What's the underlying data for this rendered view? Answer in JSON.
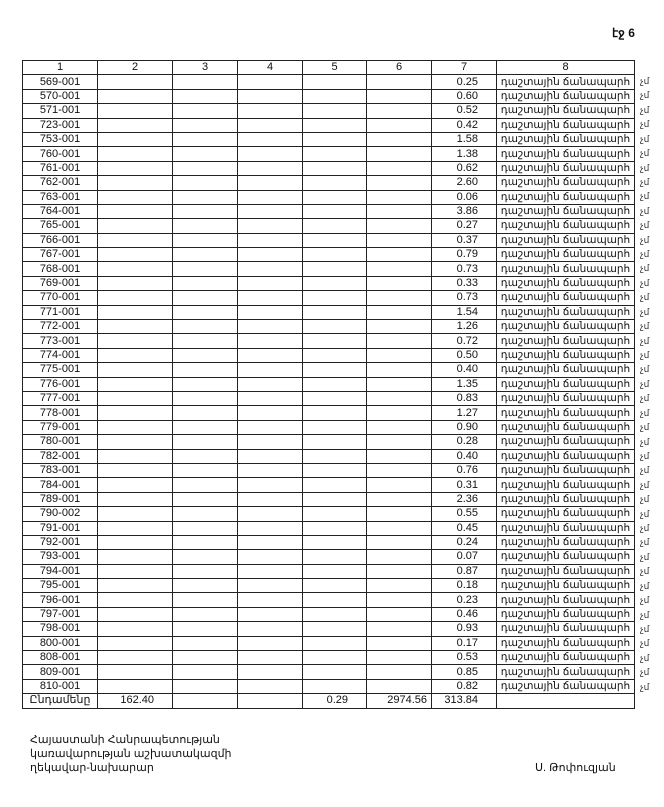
{
  "page_label": "էջ 6",
  "table": {
    "headers": [
      "1",
      "2",
      "3",
      "4",
      "5",
      "6",
      "7",
      "8"
    ],
    "rows": [
      [
        "569-001",
        "0.25"
      ],
      [
        "570-001",
        "0.60"
      ],
      [
        "571-001",
        "0.52"
      ],
      [
        "723-001",
        "0.42"
      ],
      [
        "753-001",
        "1.58"
      ],
      [
        "760-001",
        "1.38"
      ],
      [
        "761-001",
        "0.62"
      ],
      [
        "762-001",
        "2.60"
      ],
      [
        "763-001",
        "0.06"
      ],
      [
        "764-001",
        "3.86"
      ],
      [
        "765-001",
        "0.27"
      ],
      [
        "766-001",
        "0.37"
      ],
      [
        "767-001",
        "0.79"
      ],
      [
        "768-001",
        "0.73"
      ],
      [
        "769-001",
        "0.33"
      ],
      [
        "770-001",
        "0.73"
      ],
      [
        "771-001",
        "1.54"
      ],
      [
        "772-001",
        "1.26"
      ],
      [
        "773-001",
        "0.72"
      ],
      [
        "774-001",
        "0.50"
      ],
      [
        "775-001",
        "0.40"
      ],
      [
        "776-001",
        "1.35"
      ],
      [
        "777-001",
        "0.83"
      ],
      [
        "778-001",
        "1.27"
      ],
      [
        "779-001",
        "0.90"
      ],
      [
        "780-001",
        "0.28"
      ],
      [
        "782-001",
        "0.40"
      ],
      [
        "783-001",
        "0.76"
      ],
      [
        "784-001",
        "0.31"
      ],
      [
        "789-001",
        "2.36"
      ],
      [
        "790-002",
        "0.55"
      ],
      [
        "791-001",
        "0.45"
      ],
      [
        "792-001",
        "0.24"
      ],
      [
        "793-001",
        "0.07"
      ],
      [
        "794-001",
        "0.87"
      ],
      [
        "795-001",
        "0.18"
      ],
      [
        "796-001",
        "0.23"
      ],
      [
        "797-001",
        "0.46"
      ],
      [
        "798-001",
        "0.93"
      ],
      [
        "800-001",
        "0.17"
      ],
      [
        "808-001",
        "0.53"
      ],
      [
        "809-001",
        "0.85"
      ],
      [
        "810-001",
        "0.82"
      ]
    ],
    "row_type": "դաշտային ճանապարհ",
    "margin_mark": "չմ",
    "total": {
      "label": "Ընդամենը",
      "col2": "162.40",
      "col5": "0.29",
      "col6": "2974.56",
      "col7": "313.84"
    }
  },
  "footer": {
    "lines": [
      "Հայաստանի Հանրապետության",
      "կառավարության աշխատակազմի",
      "ղեկավար-նախարար"
    ],
    "signature": "Ս. Թոփուզյան"
  }
}
